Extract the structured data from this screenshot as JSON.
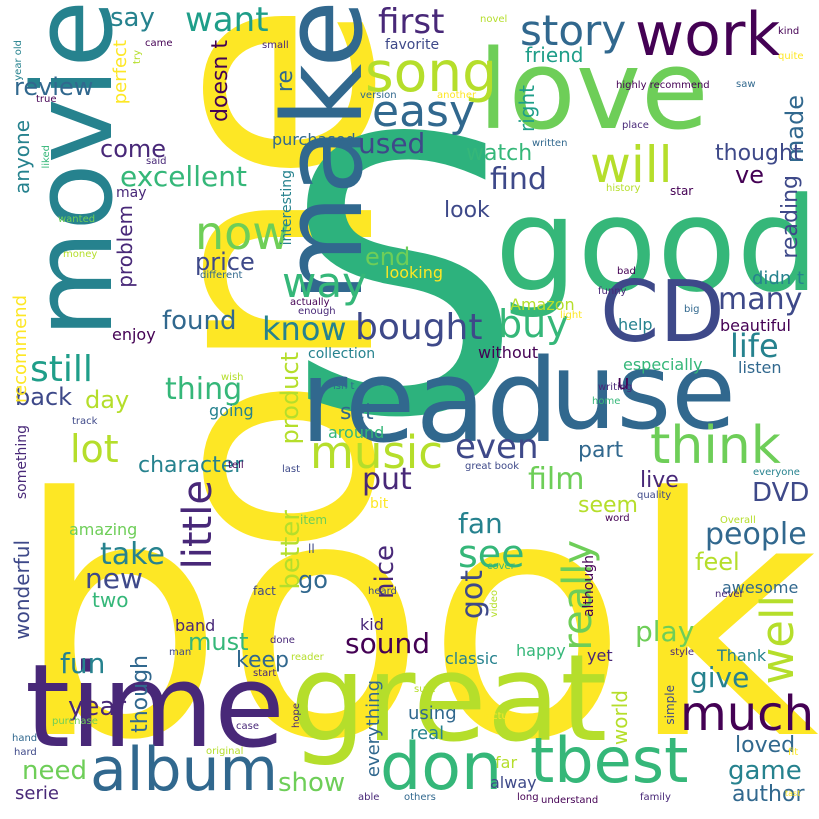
{
  "palette": {
    "yellow": "#fde725",
    "lime": "#b5de2b",
    "green": "#6ece58",
    "mint": "#35b779",
    "teal": "#1f9e89",
    "cyan": "#26828e",
    "blue": "#31688e",
    "indigo": "#3e4989",
    "purple": "#482878",
    "violet": "#440154"
  },
  "words": [
    {
      "text": "book",
      "color": "#fde725"
    },
    {
      "text": "one",
      "color": "#fde725"
    },
    {
      "text": "S",
      "color": "#2db27d"
    },
    {
      "text": "good",
      "color": "#35b779"
    },
    {
      "text": "love",
      "color": "#6ece58"
    },
    {
      "text": "make",
      "color": "#31688e"
    },
    {
      "text": "movie",
      "color": "#26828e"
    },
    {
      "text": "read",
      "color": "#31688e"
    },
    {
      "text": "use",
      "color": "#31688e"
    },
    {
      "text": "time",
      "color": "#482878"
    },
    {
      "text": "great",
      "color": "#b5de2b"
    },
    {
      "text": "CD",
      "color": "#3e4989"
    },
    {
      "text": "work",
      "color": "#440154"
    },
    {
      "text": "song",
      "color": "#b5de2b"
    },
    {
      "text": "will",
      "color": "#b5de2b"
    },
    {
      "text": "album",
      "color": "#31688e"
    },
    {
      "text": "don",
      "color": "#35b779"
    },
    {
      "text": "tbest",
      "color": "#35b779"
    },
    {
      "text": "much",
      "color": "#440154"
    },
    {
      "text": "music",
      "color": "#b5de2b"
    },
    {
      "text": "think",
      "color": "#6ece58"
    },
    {
      "text": "well",
      "color": "#b5de2b"
    },
    {
      "text": "way",
      "color": "#35b779"
    },
    {
      "text": "now",
      "color": "#6ece58"
    },
    {
      "text": "easy",
      "color": "#31688e"
    },
    {
      "text": "story",
      "color": "#31688e"
    },
    {
      "text": "first",
      "color": "#482878"
    },
    {
      "text": "say",
      "color": "#26828e"
    },
    {
      "text": "want",
      "color": "#1f9e89"
    },
    {
      "text": "bought",
      "color": "#3e4989"
    },
    {
      "text": "know",
      "color": "#26828e"
    },
    {
      "text": "buy",
      "color": "#35b779"
    },
    {
      "text": "life",
      "color": "#26828e"
    },
    {
      "text": "many",
      "color": "#3e4989"
    },
    {
      "text": "still",
      "color": "#1f9e89"
    },
    {
      "text": "lot",
      "color": "#b5de2b"
    },
    {
      "text": "thing",
      "color": "#35b779"
    },
    {
      "text": "even",
      "color": "#3e4989"
    },
    {
      "text": "find",
      "color": "#3e4989"
    },
    {
      "text": "used",
      "color": "#3e4989"
    },
    {
      "text": "excellent",
      "color": "#35b779"
    },
    {
      "text": "little",
      "color": "#482878"
    },
    {
      "text": "really",
      "color": "#6ece58"
    },
    {
      "text": "see",
      "color": "#35b779"
    },
    {
      "text": "fan",
      "color": "#26828e"
    },
    {
      "text": "got",
      "color": "#3e4989"
    },
    {
      "text": "take",
      "color": "#26828e"
    },
    {
      "text": "new",
      "color": "#3e4989"
    },
    {
      "text": "people",
      "color": "#31688e"
    },
    {
      "text": "DVD",
      "color": "#3e4989"
    },
    {
      "text": "film",
      "color": "#6ece58"
    },
    {
      "text": "put",
      "color": "#482878"
    },
    {
      "text": "character",
      "color": "#26828e"
    },
    {
      "text": "sound",
      "color": "#440154"
    },
    {
      "text": "play",
      "color": "#6ece58"
    },
    {
      "text": "give",
      "color": "#26828e"
    },
    {
      "text": "game",
      "color": "#26828e"
    },
    {
      "text": "author",
      "color": "#31688e"
    },
    {
      "text": "year",
      "color": "#482878"
    },
    {
      "text": "need",
      "color": "#6ece58"
    },
    {
      "text": "show",
      "color": "#6ece58"
    },
    {
      "text": "fun",
      "color": "#26828e"
    },
    {
      "text": "keep",
      "color": "#31688e"
    },
    {
      "text": "must",
      "color": "#35b779"
    },
    {
      "text": "go",
      "color": "#31688e"
    },
    {
      "text": "nice",
      "color": "#482878"
    },
    {
      "text": "better",
      "color": "#b5de2b"
    },
    {
      "text": "though",
      "color": "#31688e"
    },
    {
      "text": "loved",
      "color": "#31688e"
    },
    {
      "text": "feel",
      "color": "#b5de2b"
    },
    {
      "text": "ve",
      "color": "#440154"
    },
    {
      "text": "made",
      "color": "#31688e"
    },
    {
      "text": "reading",
      "color": "#3e4989"
    },
    {
      "text": "thought",
      "color": "#3e4989"
    },
    {
      "text": "watch",
      "color": "#35b779"
    },
    {
      "text": "review",
      "color": "#31688e"
    },
    {
      "text": "come",
      "color": "#482878"
    },
    {
      "text": "back",
      "color": "#3e4989"
    },
    {
      "text": "day",
      "color": "#b5de2b"
    },
    {
      "text": "found",
      "color": "#31688e"
    },
    {
      "text": "price",
      "color": "#3e4989"
    },
    {
      "text": "end",
      "color": "#6ece58"
    },
    {
      "text": "look",
      "color": "#3e4989"
    },
    {
      "text": "product",
      "color": "#b5de2b"
    },
    {
      "text": "set",
      "color": "#31688e"
    },
    {
      "text": "part",
      "color": "#31688e"
    },
    {
      "text": "live",
      "color": "#482878"
    },
    {
      "text": "seem",
      "color": "#b5de2b"
    },
    {
      "text": "two",
      "color": "#35b779"
    },
    {
      "text": "wonderful",
      "color": "#3e4989"
    },
    {
      "text": "recommend",
      "color": "#fde725"
    },
    {
      "text": "anyone",
      "color": "#26828e"
    },
    {
      "text": "perfect",
      "color": "#fde725"
    },
    {
      "text": "doesn t",
      "color": "#440154"
    },
    {
      "text": "re",
      "color": "#31688e"
    },
    {
      "text": "friend",
      "color": "#1f9e89"
    },
    {
      "text": "right",
      "color": "#1f9e89"
    },
    {
      "text": "favorite",
      "color": "#3e4989"
    },
    {
      "text": "purchased",
      "color": "#31688e"
    },
    {
      "text": "problem",
      "color": "#482878"
    },
    {
      "text": "enjoy",
      "color": "#440154"
    },
    {
      "text": "interesting",
      "color": "#26828e"
    },
    {
      "text": "looking",
      "color": "#fde725"
    },
    {
      "text": "didn t",
      "color": "#26828e"
    },
    {
      "text": "beautiful",
      "color": "#440154"
    },
    {
      "text": "help",
      "color": "#26828e"
    },
    {
      "text": "especially",
      "color": "#35b779"
    },
    {
      "text": "listen",
      "color": "#31688e"
    },
    {
      "text": "without",
      "color": "#440154"
    },
    {
      "text": "collection",
      "color": "#26828e"
    },
    {
      "text": "Amazon",
      "color": "#b5de2b"
    },
    {
      "text": "u",
      "color": "#440154"
    },
    {
      "text": "going",
      "color": "#26828e"
    },
    {
      "text": "around",
      "color": "#35b779"
    },
    {
      "text": "something",
      "color": "#482878"
    },
    {
      "text": "amazing",
      "color": "#6ece58"
    },
    {
      "text": "band",
      "color": "#482878"
    },
    {
      "text": "kid",
      "color": "#482878"
    },
    {
      "text": "classic",
      "color": "#26828e"
    },
    {
      "text": "happy",
      "color": "#35b779"
    },
    {
      "text": "yet",
      "color": "#482878"
    },
    {
      "text": "Thank",
      "color": "#26828e"
    },
    {
      "text": "awesome",
      "color": "#31688e"
    },
    {
      "text": "although",
      "color": "#440154"
    },
    {
      "text": "world",
      "color": "#b5de2b"
    },
    {
      "text": "using",
      "color": "#31688e"
    },
    {
      "text": "real",
      "color": "#26828e"
    },
    {
      "text": "everything",
      "color": "#31688e"
    },
    {
      "text": "far",
      "color": "#b5de2b"
    },
    {
      "text": "alway",
      "color": "#3e4989"
    },
    {
      "text": "serie",
      "color": "#482878"
    },
    {
      "text": "simple",
      "color": "#3e4989"
    },
    {
      "text": "bit",
      "color": "#fde725"
    },
    {
      "text": "item",
      "color": "#6ece58"
    },
    {
      "text": "ll",
      "color": "#3e4989"
    },
    {
      "text": "fact",
      "color": "#3e4989"
    },
    {
      "text": "done",
      "color": "#482878"
    },
    {
      "text": "heard",
      "color": "#3e4989"
    },
    {
      "text": "cover",
      "color": "#35b779"
    },
    {
      "text": "video",
      "color": "#b5de2b"
    },
    {
      "text": "word",
      "color": "#440154"
    },
    {
      "text": "never",
      "color": "#482878"
    },
    {
      "text": "quality",
      "color": "#3e4989"
    },
    {
      "text": "Overall",
      "color": "#b5de2b"
    },
    {
      "text": "everyone",
      "color": "#26828e"
    },
    {
      "text": "last",
      "color": "#3e4989"
    },
    {
      "text": "great book",
      "color": "#3e4989"
    },
    {
      "text": "tell",
      "color": "#440154"
    },
    {
      "text": "track",
      "color": "#3e4989"
    },
    {
      "text": "wish",
      "color": "#b5de2b"
    },
    {
      "text": "isn t",
      "color": "#31688e"
    },
    {
      "text": "writing",
      "color": "#482878"
    },
    {
      "text": "home",
      "color": "#35b779"
    },
    {
      "text": "enough",
      "color": "#482878"
    },
    {
      "text": "actually",
      "color": "#440154"
    },
    {
      "text": "light",
      "color": "#fde725"
    },
    {
      "text": "big",
      "color": "#31688e"
    },
    {
      "text": "funny",
      "color": "#482878"
    },
    {
      "text": "bad",
      "color": "#440154"
    },
    {
      "text": "different",
      "color": "#31688e"
    },
    {
      "text": "money",
      "color": "#b5de2b"
    },
    {
      "text": "wanted",
      "color": "#6ece58"
    },
    {
      "text": "liked",
      "color": "#35b779"
    },
    {
      "text": "may",
      "color": "#482878"
    },
    {
      "text": "said",
      "color": "#482878"
    },
    {
      "text": "try",
      "color": "#b5de2b"
    },
    {
      "text": "came",
      "color": "#440154"
    },
    {
      "text": "small",
      "color": "#482878"
    },
    {
      "text": "novel",
      "color": "#b5de2b"
    },
    {
      "text": "version",
      "color": "#31688e"
    },
    {
      "text": "another",
      "color": "#fde725"
    },
    {
      "text": "written",
      "color": "#31688e"
    },
    {
      "text": "highly recommend",
      "color": "#440154"
    },
    {
      "text": "place",
      "color": "#482878"
    },
    {
      "text": "history",
      "color": "#b5de2b"
    },
    {
      "text": "star",
      "color": "#440154"
    },
    {
      "text": "saw",
      "color": "#31688e"
    },
    {
      "text": "kind",
      "color": "#440154"
    },
    {
      "text": "quite",
      "color": "#fde725"
    },
    {
      "text": "year old",
      "color": "#26828e"
    },
    {
      "text": "true",
      "color": "#440154"
    },
    {
      "text": "hand",
      "color": "#31688e"
    },
    {
      "text": "hard",
      "color": "#3e4989"
    },
    {
      "text": "original",
      "color": "#b5de2b"
    },
    {
      "text": "purchase",
      "color": "#6ece58"
    },
    {
      "text": "case",
      "color": "#482878"
    },
    {
      "text": "hope",
      "color": "#482878"
    },
    {
      "text": "man",
      "color": "#3e4989"
    },
    {
      "text": "start",
      "color": "#482878"
    },
    {
      "text": "reader",
      "color": "#b5de2b"
    },
    {
      "text": "sure",
      "color": "#b5de2b"
    },
    {
      "text": "picture",
      "color": "#fde725"
    },
    {
      "text": "style",
      "color": "#482878"
    },
    {
      "text": "fit",
      "color": "#fde725"
    },
    {
      "text": "able",
      "color": "#482878"
    },
    {
      "text": "others",
      "color": "#31688e"
    },
    {
      "text": "long",
      "color": "#440154"
    },
    {
      "text": "understand",
      "color": "#440154"
    },
    {
      "text": "family",
      "color": "#482878"
    },
    {
      "text": "tast",
      "color": "#fde725"
    }
  ]
}
